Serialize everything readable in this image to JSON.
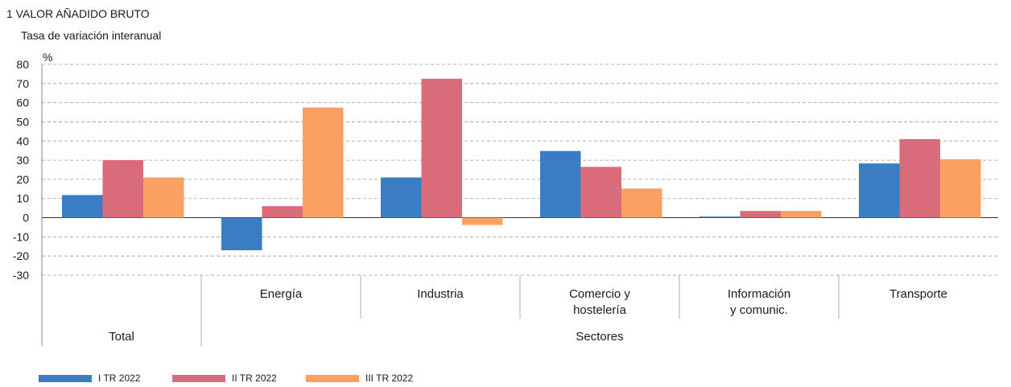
{
  "chart_data": {
    "type": "bar",
    "title": "1  VALOR AÑADIDO BRUTO",
    "subtitle": "Tasa de variación interanual",
    "ylabel": "%",
    "ylim": [
      -30,
      80
    ],
    "yticks": [
      80,
      70,
      60,
      50,
      40,
      30,
      20,
      10,
      0,
      -10,
      -20,
      -30
    ],
    "grid": true,
    "legend_position": "bottom-left",
    "categories": [
      "",
      "Energía",
      "Industria",
      "Comercio y\nhostelería",
      "Información\ny comunic.",
      "Transporte"
    ],
    "groups": [
      {
        "label": "Total",
        "span": 1
      },
      {
        "label": "Sectores",
        "span": 5
      }
    ],
    "series": [
      {
        "name": "I TR 2022",
        "color": "#3b7dc4",
        "values": [
          11.8,
          -17.0,
          21.0,
          34.8,
          0.6,
          28.3
        ]
      },
      {
        "name": "II TR 2022",
        "color": "#d96b7b",
        "values": [
          30.0,
          6.0,
          72.5,
          26.5,
          3.5,
          41.0
        ]
      },
      {
        "name": "III TR 2022",
        "color": "#f9a062",
        "values": [
          21.0,
          57.5,
          -3.8,
          15.2,
          3.5,
          30.5
        ]
      }
    ]
  }
}
